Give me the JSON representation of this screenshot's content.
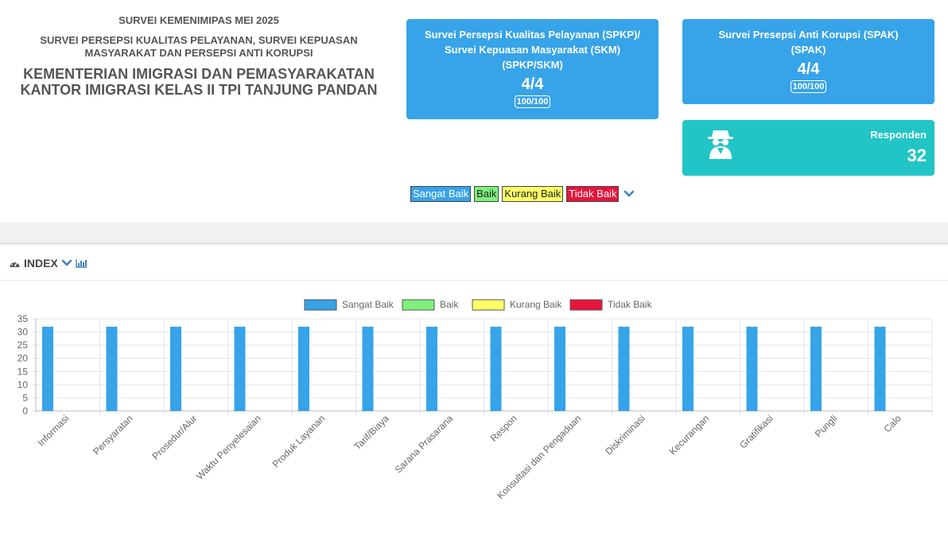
{
  "header": {
    "survey_title": "SURVEI KEMENIMIPAS MEI 2025",
    "survey_subtitle_1": "SURVEI PERSEPSI KUALITAS PELAYANAN, SURVEI KEPUASAN",
    "survey_subtitle_2": "MASYARAKAT DAN PERSEPSI ANTI KORUPSI",
    "org_line_1": "KEMENTERIAN IMIGRASI DAN PEMASYARAKATAN",
    "org_line_2": "KANTOR IMIGRASI KELAS II TPI TANJUNG PANDAN"
  },
  "cards": {
    "skm": {
      "title_1": "Survei Persepsi Kualitas Pelayanan (SPKP)/",
      "title_2": "Survei Kepuasan Masyarakat (SKM)",
      "title_3": "(SPKP/SKM)",
      "score": "4/4",
      "badge": "100/100"
    },
    "spak": {
      "title_1": "Survei Presepsi Anti Korupsi (SPAK)",
      "title_2": "(SPAK)",
      "score": "4/4",
      "badge": "100/100"
    },
    "responden": {
      "label": "Responden",
      "value": "32",
      "icon": "spy-icon"
    }
  },
  "legend": {
    "items": [
      {
        "label": "Sangat Baik",
        "color": "#37a3e8",
        "text_color": "#ffffff"
      },
      {
        "label": "Baik",
        "color": "#7ef07e",
        "text_color": "#222222"
      },
      {
        "label": "Kurang Baik",
        "color": "#ffff66",
        "text_color": "#222222"
      },
      {
        "label": "Tidak Baik",
        "color": "#e8143c",
        "text_color": "#ffffff"
      }
    ],
    "toggle_icon": "chevron-down-icon"
  },
  "index_section": {
    "title": "INDEX",
    "icons": [
      "dashboard-icon",
      "chevron-down-icon",
      "bar-chart-icon"
    ]
  },
  "chart_data": {
    "type": "bar",
    "categories": [
      "Informasi",
      "Persyaratan",
      "Prosedur/Alur",
      "Waktu Penyelesaian",
      "Produk Layanan",
      "Tarif/Biaya",
      "Sarana Prasarana",
      "Respon",
      "Konsultasi dan Pengaduan",
      "Diskriminasi",
      "Kecurangan",
      "Gratifikasi",
      "Pungli",
      "Calo"
    ],
    "series": [
      {
        "name": "Sangat Baik",
        "color": "#37a3e8",
        "values": [
          32,
          32,
          32,
          32,
          32,
          32,
          32,
          32,
          32,
          32,
          32,
          32,
          32,
          32
        ]
      },
      {
        "name": "Baik",
        "color": "#7ef07e",
        "values": [
          0,
          0,
          0,
          0,
          0,
          0,
          0,
          0,
          0,
          0,
          0,
          0,
          0,
          0
        ]
      },
      {
        "name": "Kurang Baik",
        "color": "#ffff66",
        "values": [
          0,
          0,
          0,
          0,
          0,
          0,
          0,
          0,
          0,
          0,
          0,
          0,
          0,
          0
        ]
      },
      {
        "name": "Tidak Baik",
        "color": "#e8143c",
        "values": [
          0,
          0,
          0,
          0,
          0,
          0,
          0,
          0,
          0,
          0,
          0,
          0,
          0,
          0
        ]
      }
    ],
    "y_ticks": [
      0,
      5,
      10,
      15,
      20,
      25,
      30,
      35
    ],
    "ylim": [
      0,
      35
    ],
    "grid": true,
    "legend_position": "top"
  }
}
